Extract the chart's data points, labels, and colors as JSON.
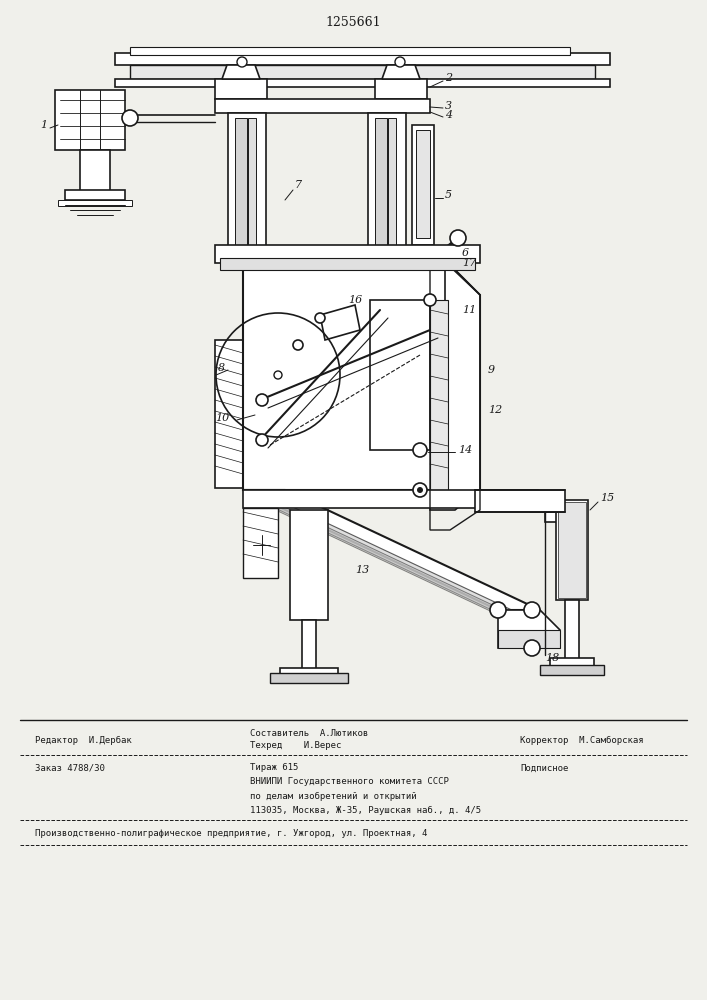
{
  "patent_number": "1255661",
  "bg": "#f0f0eb",
  "lc": "#1a1a1a",
  "footer": {
    "editor": "Редактор  И.Дербак",
    "composer_line1": "Составитель  А.Лютиков",
    "techred": "Техред    И.Верес",
    "corrector": "Корректор  М.Самборская",
    "order": "Заказ 4788/30",
    "tirazh": "Тираж 615",
    "podpisnoe": "Подписное",
    "vniiipi": "ВНИИПИ Государственного комитета СССР",
    "po_delam": "по делам изобретений и открытий",
    "address": "113035, Москва, Ж-35, Раушская наб., д. 4/5",
    "factory": "Производственно-полиграфическое предприятие, г. Ужгород, ул. Проектная, 4"
  }
}
